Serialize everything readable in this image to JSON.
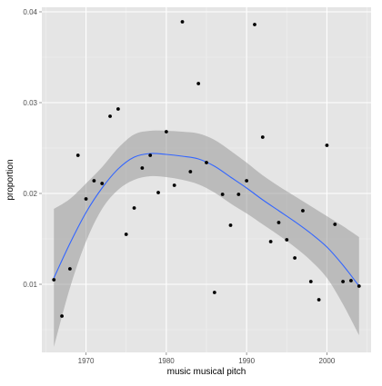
{
  "chart_data": {
    "type": "scatter",
    "title": "",
    "xlabel": "music musical pitch",
    "ylabel": "proportion",
    "xlim": [
      1964.5,
      2005.5
    ],
    "ylim": [
      0.0025,
      0.0405
    ],
    "x_ticks": [
      1970,
      1980,
      1990,
      2000
    ],
    "y_ticks": [
      0.01,
      0.02,
      0.03,
      0.04
    ],
    "x_tick_labels": [
      "1970",
      "1980",
      "1990",
      "2000"
    ],
    "y_tick_labels": [
      "0.01",
      "0.02",
      "0.03",
      "0.04"
    ],
    "grid": true,
    "legend": "none",
    "points": {
      "x": [
        1966,
        1967,
        1968,
        1969,
        1970,
        1971,
        1972,
        1973,
        1974,
        1975,
        1976,
        1977,
        1978,
        1979,
        1980,
        1981,
        1982,
        1983,
        1984,
        1985,
        1986,
        1987,
        1988,
        1989,
        1990,
        1991,
        1992,
        1993,
        1994,
        1995,
        1996,
        1997,
        1998,
        1999,
        2000,
        2001,
        2002,
        2003,
        2004
      ],
      "y": [
        0.0105,
        0.0065,
        0.0117,
        0.0242,
        0.0194,
        0.0214,
        0.0211,
        0.0285,
        0.0293,
        0.0155,
        0.0184,
        0.0228,
        0.0242,
        0.0201,
        0.0268,
        0.0209,
        0.0389,
        0.0224,
        0.0321,
        0.0234,
        0.0091,
        0.0199,
        0.0165,
        0.0199,
        0.0214,
        0.0386,
        0.0262,
        0.0147,
        0.0168,
        0.0149,
        0.0129,
        0.0181,
        0.0103,
        0.0083,
        0.0253,
        0.0166,
        0.0103,
        0.0104,
        0.0098
      ]
    },
    "smooth": {
      "x": [
        1966,
        1968,
        1970,
        1972,
        1974,
        1976,
        1978,
        1980,
        1982,
        1984,
        1986,
        1988,
        1990,
        1992,
        1994,
        1996,
        1998,
        2000,
        2002,
        2004
      ],
      "y": [
        0.0107,
        0.0145,
        0.0179,
        0.0206,
        0.0227,
        0.024,
        0.0244,
        0.0243,
        0.0241,
        0.0238,
        0.023,
        0.0218,
        0.0206,
        0.0193,
        0.0181,
        0.0169,
        0.0156,
        0.0141,
        0.0121,
        0.0098
      ],
      "upper": [
        0.0183,
        0.0194,
        0.0211,
        0.0229,
        0.025,
        0.0265,
        0.0269,
        0.0269,
        0.0268,
        0.0266,
        0.0259,
        0.0247,
        0.0234,
        0.022,
        0.0208,
        0.0197,
        0.0186,
        0.0175,
        0.0164,
        0.0152
      ],
      "lower": [
        0.0031,
        0.0096,
        0.0147,
        0.0183,
        0.0204,
        0.0215,
        0.0219,
        0.0218,
        0.0215,
        0.021,
        0.0201,
        0.0189,
        0.0178,
        0.0166,
        0.0154,
        0.0141,
        0.0126,
        0.0107,
        0.0078,
        0.0044
      ]
    },
    "colors": {
      "panel": "#e5e5e5",
      "grid_major": "#ffffff",
      "grid_minor": "#f2f2f2",
      "point": "#000000",
      "line": "#3366ff",
      "ribbon": "#999999"
    }
  }
}
